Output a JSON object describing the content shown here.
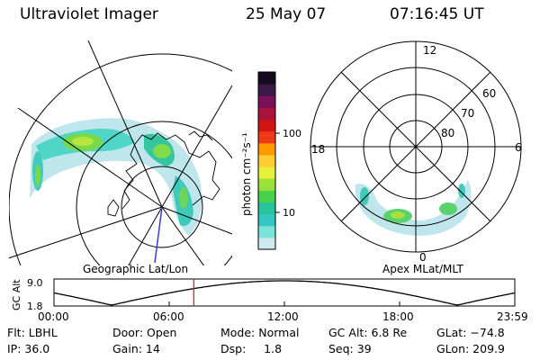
{
  "header": {
    "instrument": "Ultraviolet Imager",
    "date": "25 May 07",
    "time": "07:16:45 UT"
  },
  "left_panel": {
    "label": "Geographic Lat/Lon"
  },
  "right_panel": {
    "label": "Apex MLat/MLT",
    "mlt_labels": [
      "12",
      "18",
      "6",
      "0"
    ],
    "lat_labels": [
      "60",
      "70",
      "80"
    ]
  },
  "colorbar": {
    "label": "photon cm⁻²s⁻¹",
    "ticks": [
      "100",
      "10"
    ],
    "colors": [
      "#d0e9ee",
      "#7be3d9",
      "#36c7c2",
      "#27c49b",
      "#49d04c",
      "#9ee03b",
      "#e5f23b",
      "#ffcc33",
      "#ff9900",
      "#ee3a1a",
      "#cf1515",
      "#a8133d",
      "#7a0f5a",
      "#3c1a48",
      "#150a1e"
    ]
  },
  "altitude_plot": {
    "ylabel": "GC Alt",
    "y_ticks": [
      "9.0",
      "1.8"
    ],
    "x_ticks": [
      "00:00",
      "06:00",
      "12:00",
      "18:00",
      "23:59"
    ],
    "current_time_hours": 7.28,
    "marker_color": "#e01010"
  },
  "status": {
    "flt": "Flt: LBHL",
    "door": "Door: Open",
    "mode": "Mode: Normal",
    "gc_alt": "GC Alt: 6.8 Re",
    "glat": "GLat: −74.8",
    "ip": "IP: 36.0",
    "gain": "Gain: 14",
    "dsp": "Dsp:     1.8",
    "seq": "Seq: 39",
    "glon": "GLon: 209.9"
  }
}
